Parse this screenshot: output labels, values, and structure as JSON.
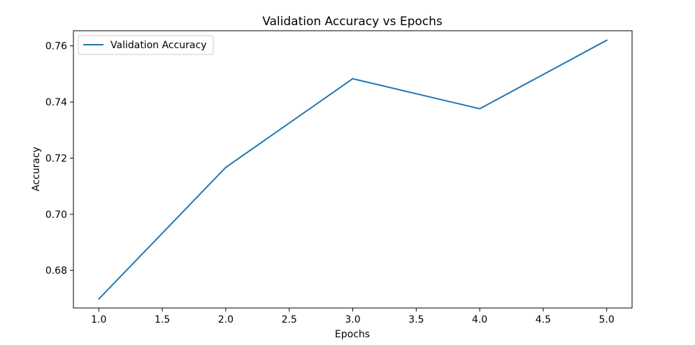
{
  "chart_data": {
    "type": "line",
    "title": "Validation Accuracy vs Epochs",
    "xlabel": "Epochs",
    "ylabel": "Accuracy",
    "x": [
      1.0,
      2.0,
      3.0,
      4.0,
      5.0
    ],
    "series": [
      {
        "name": "Validation Accuracy",
        "color": "#1f77b4",
        "values": [
          0.6698,
          0.7167,
          0.7483,
          0.7376,
          0.762
        ]
      }
    ],
    "xlim": [
      0.8,
      5.2
    ],
    "ylim": [
      0.6666,
      0.7654
    ],
    "xticks": [
      1.0,
      1.5,
      2.0,
      2.5,
      3.0,
      3.5,
      4.0,
      4.5,
      5.0
    ],
    "xtick_labels": [
      "1.0",
      "1.5",
      "2.0",
      "2.5",
      "3.0",
      "3.5",
      "4.0",
      "4.5",
      "5.0"
    ],
    "yticks": [
      0.68,
      0.7,
      0.72,
      0.74,
      0.76
    ],
    "ytick_labels": [
      "0.68",
      "0.70",
      "0.72",
      "0.74",
      "0.76"
    ],
    "grid": false,
    "legend": "upper left"
  }
}
